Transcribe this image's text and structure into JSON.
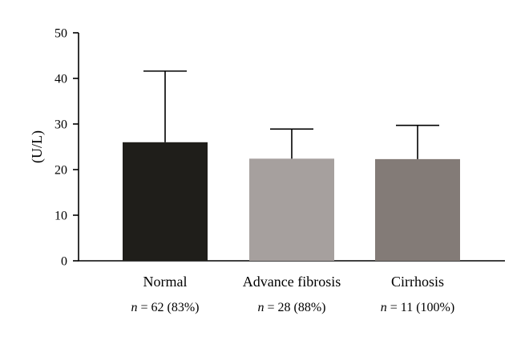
{
  "chart_data": {
    "type": "bar",
    "title": "",
    "xlabel": "",
    "ylabel": "(U/L)",
    "ylim": [
      0,
      50
    ],
    "yticks": [
      0,
      10,
      20,
      30,
      40,
      50
    ],
    "grid": false,
    "legend": "none",
    "categories": [
      "Normal",
      "Advance fibrosis",
      "Cirrhosis"
    ],
    "values": [
      26,
      22.4,
      22.3
    ],
    "error_upper": [
      41.6,
      28.9,
      29.7
    ],
    "n_labels": [
      {
        "prefix": "n",
        "text": " = 62 (83%)"
      },
      {
        "prefix": "n",
        "text": " = 28 (88%)"
      },
      {
        "prefix": "n",
        "text": " = 11 (100%)"
      }
    ],
    "colors": [
      "#1f1e1a",
      "#a6a09e",
      "#837b77"
    ]
  }
}
